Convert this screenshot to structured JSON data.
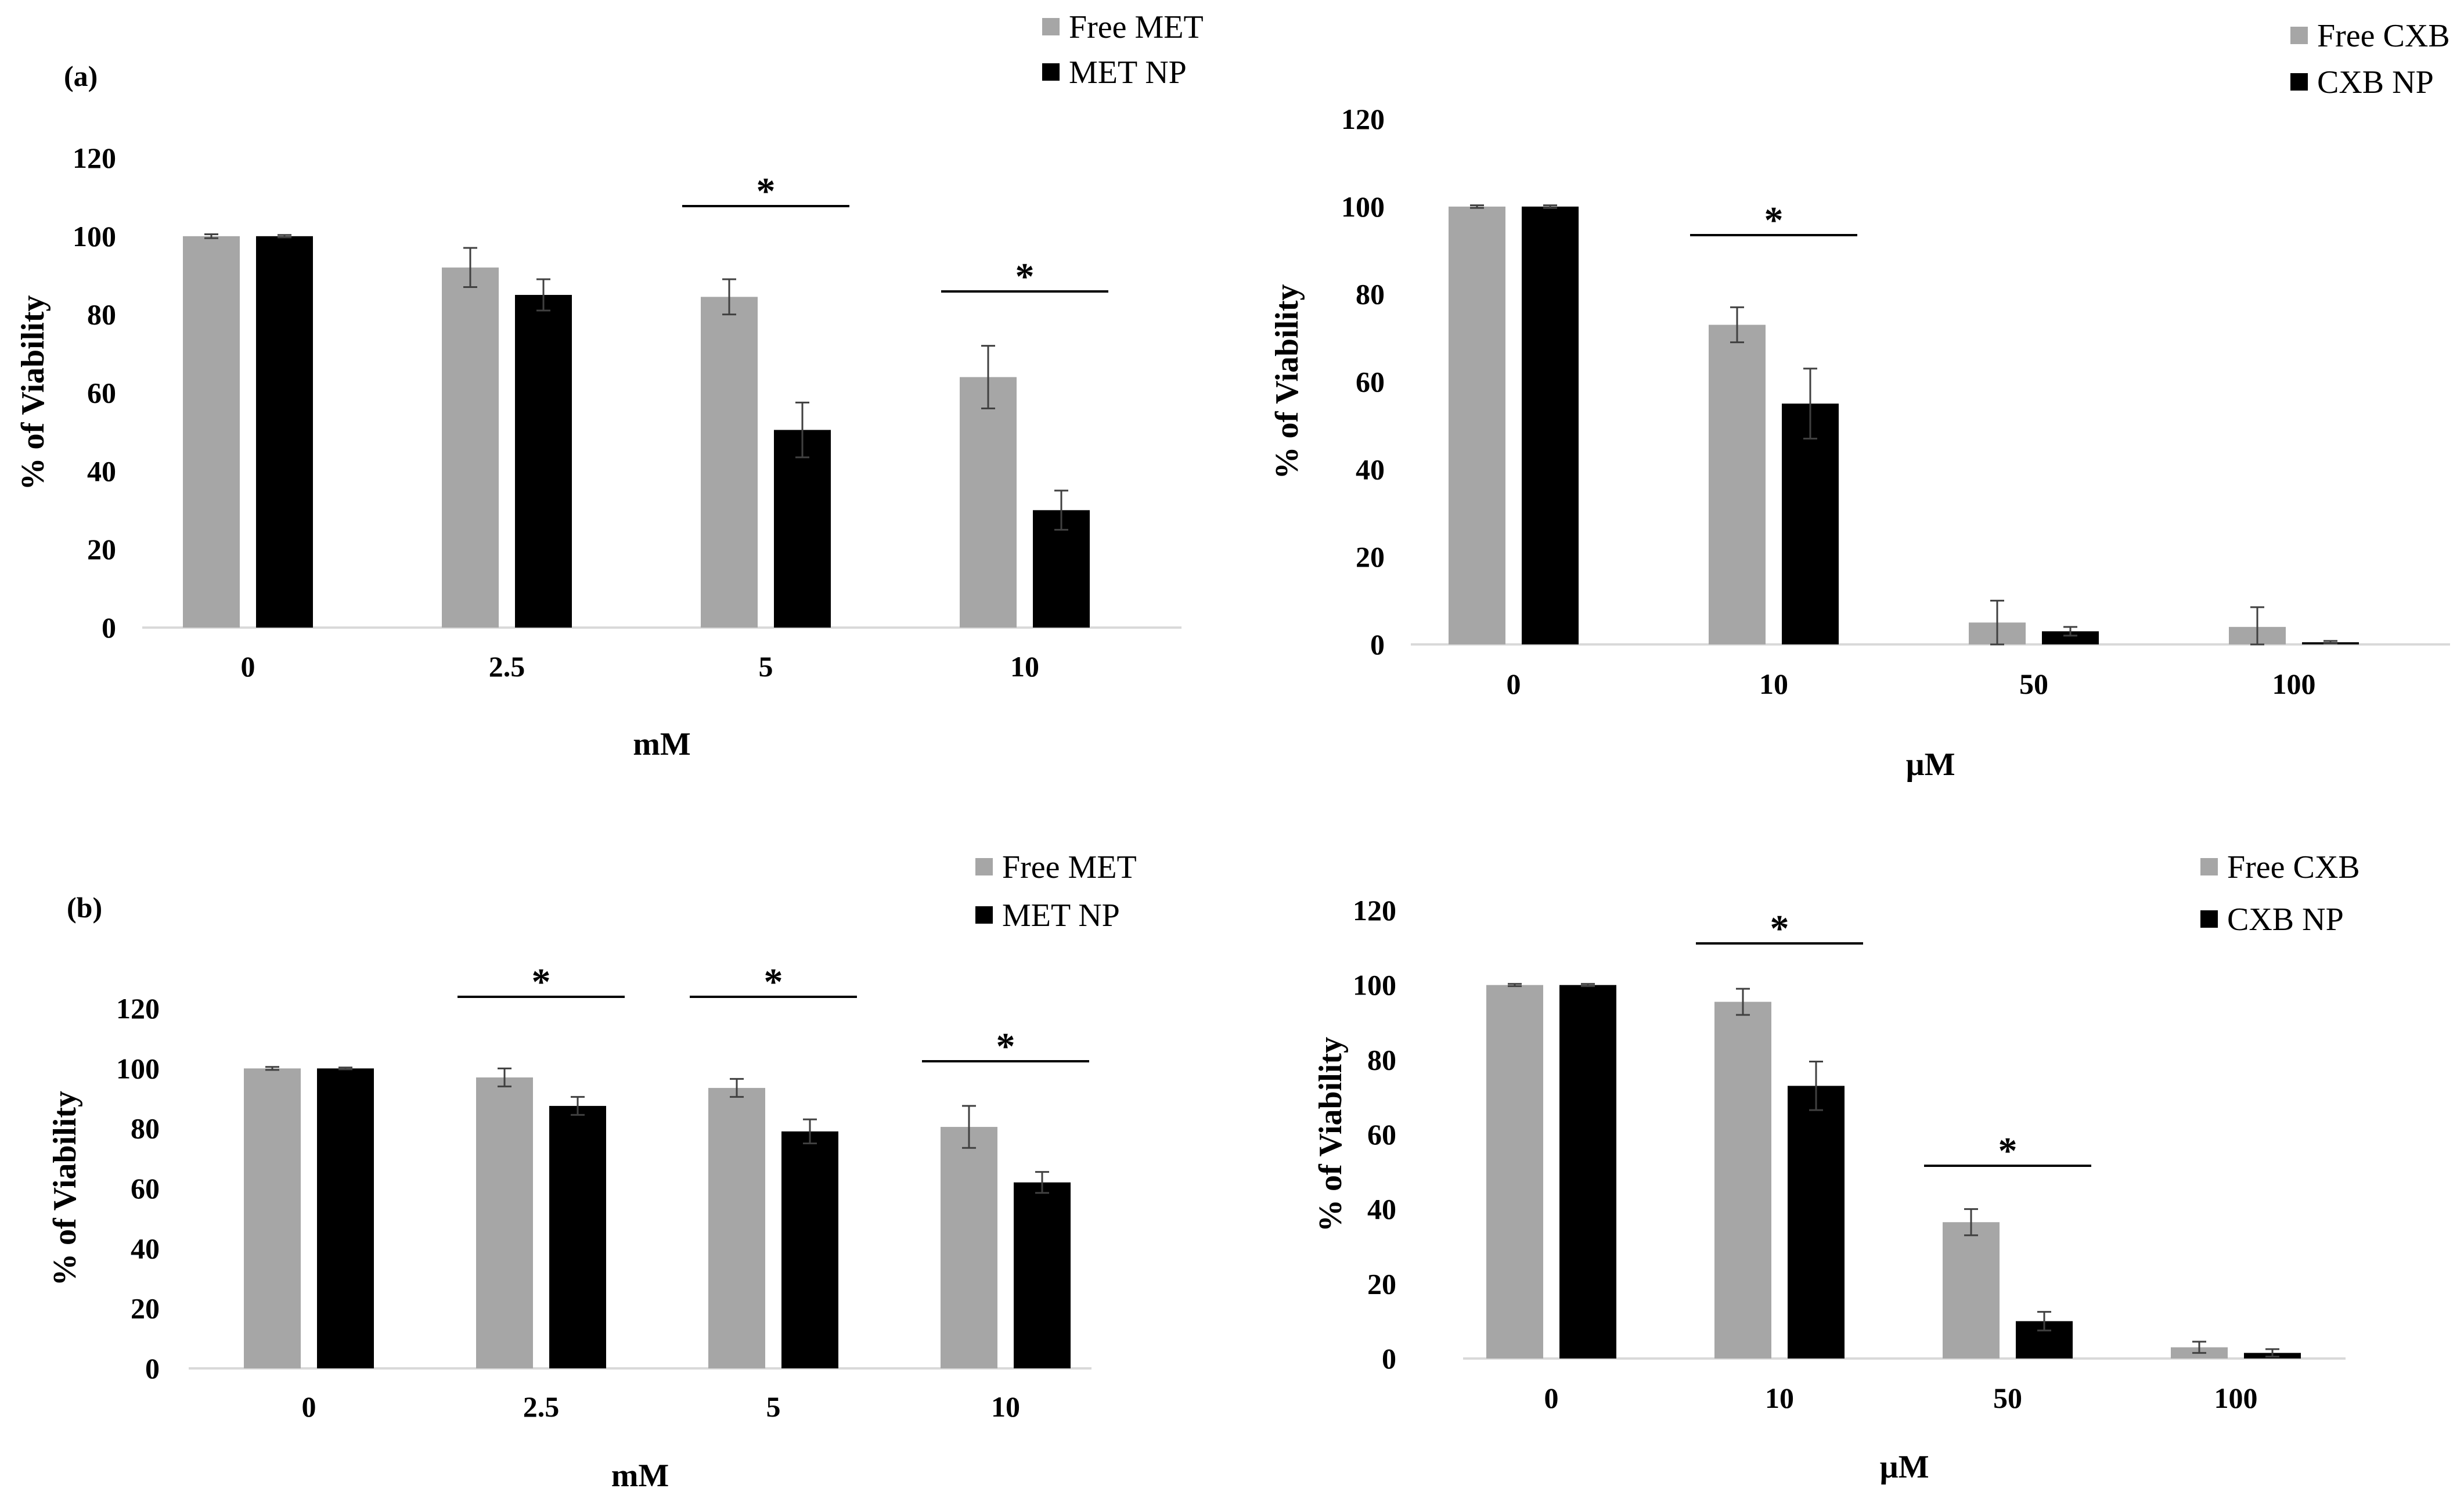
{
  "figure": {
    "panel_labels": [
      "(a)",
      "(b)"
    ]
  },
  "colors": {
    "free": "#a6a6a6",
    "np": "#000000",
    "axis": "#d9d9d9"
  },
  "chart_data": [
    {
      "id": "a-met",
      "panel": "(a)",
      "type": "bar",
      "categories": [
        "0",
        "2.5",
        "5",
        "10"
      ],
      "series": [
        {
          "name": "Free MET",
          "values": [
            100,
            92,
            84.5,
            64
          ],
          "errors": [
            0.5,
            5,
            4.5,
            8
          ]
        },
        {
          "name": "MET NP",
          "values": [
            100,
            85,
            50.5,
            30
          ],
          "errors": [
            0.3,
            4,
            7,
            5
          ]
        }
      ],
      "significant_categories": [
        "5",
        "10"
      ],
      "significance_mark": "*",
      "xlabel": "mM",
      "ylabel": "% of Viability",
      "yticks": [
        "0",
        "20",
        "40",
        "60",
        "80",
        "100",
        "120"
      ],
      "ylim": [
        0,
        120
      ]
    },
    {
      "id": "a-cxb",
      "panel": "(a)",
      "type": "bar",
      "categories": [
        "0",
        "10",
        "50",
        "100"
      ],
      "series": [
        {
          "name": "Free CXB",
          "values": [
            100,
            73,
            5,
            4
          ],
          "errors": [
            0.3,
            4,
            5,
            4.5
          ]
        },
        {
          "name": "CXB NP",
          "values": [
            100,
            55,
            3,
            0.5
          ],
          "errors": [
            0.3,
            8,
            1,
            0.3
          ]
        }
      ],
      "significant_categories": [
        "10"
      ],
      "significance_mark": "*",
      "xlabel": "µM",
      "ylabel": "% of Viability",
      "yticks": [
        "0",
        "20",
        "40",
        "60",
        "80",
        "100",
        "120"
      ],
      "ylim": [
        0,
        120
      ]
    },
    {
      "id": "b-met",
      "panel": "(b)",
      "type": "bar",
      "categories": [
        "0",
        "2.5",
        "5",
        "10"
      ],
      "series": [
        {
          "name": "Free MET",
          "values": [
            100,
            97,
            93.5,
            80.5
          ],
          "errors": [
            0.5,
            3,
            3,
            7
          ]
        },
        {
          "name": "MET NP",
          "values": [
            100,
            87.5,
            79,
            62
          ],
          "errors": [
            0.3,
            3,
            4,
            3.5
          ]
        }
      ],
      "significant_categories": [
        "2.5",
        "5",
        "10"
      ],
      "significance_mark": "*",
      "xlabel": "mM",
      "ylabel": "% of Viability",
      "yticks": [
        "0",
        "20",
        "40",
        "60",
        "80",
        "100",
        "120"
      ],
      "ylim": [
        0,
        120
      ]
    },
    {
      "id": "b-cxb",
      "panel": "(b)",
      "type": "bar",
      "categories": [
        "0",
        "10",
        "50",
        "100"
      ],
      "series": [
        {
          "name": "Free CXB",
          "values": [
            100,
            95.5,
            36.5,
            3
          ],
          "errors": [
            0.3,
            3.5,
            3.5,
            1.5
          ]
        },
        {
          "name": "CXB NP",
          "values": [
            100,
            73,
            10,
            1.5
          ],
          "errors": [
            0.3,
            6.5,
            2.5,
            1
          ]
        }
      ],
      "significant_categories": [
        "10",
        "50"
      ],
      "significance_mark": "*",
      "xlabel": "µM",
      "ylabel": "% of Viability",
      "yticks": [
        "0",
        "20",
        "40",
        "60",
        "80",
        "100",
        "120"
      ],
      "ylim": [
        0,
        120
      ]
    }
  ]
}
